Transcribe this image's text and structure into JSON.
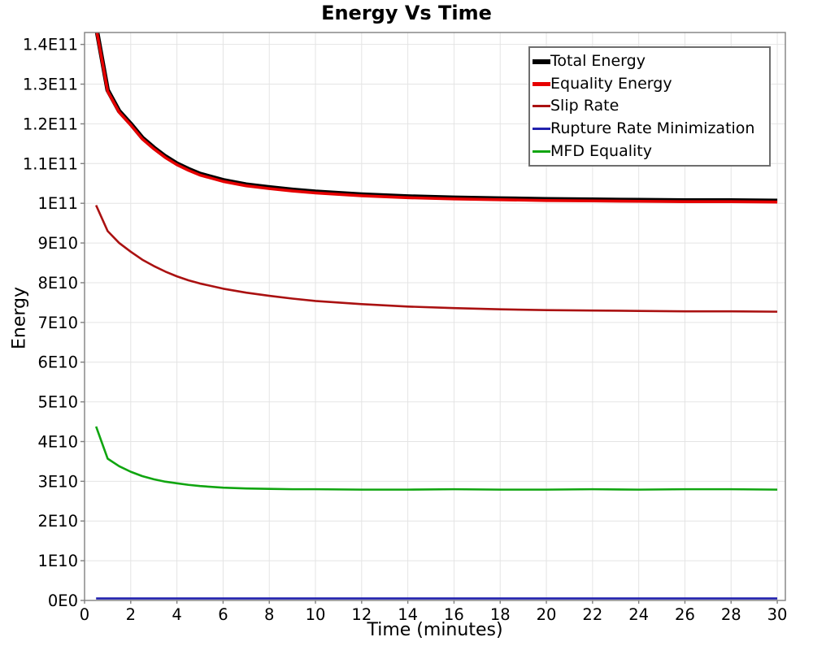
{
  "chart_data": {
    "type": "line",
    "title": "Energy Vs Time",
    "xlabel": "Time (minutes)",
    "ylabel": "Energy",
    "grid": true,
    "legend_position": "top-right",
    "xlim": [
      0,
      30.35
    ],
    "ylim": [
      0,
      143000000000.0
    ],
    "x_ticks": {
      "values": [
        0,
        2,
        4,
        6,
        8,
        10,
        12,
        14,
        16,
        18,
        20,
        22,
        24,
        26,
        28,
        30
      ],
      "labels": [
        "0",
        "2",
        "4",
        "6",
        "8",
        "10",
        "12",
        "14",
        "16",
        "18",
        "20",
        "22",
        "24",
        "26",
        "28",
        "30"
      ]
    },
    "y_ticks": {
      "values": [
        0,
        10000000000.0,
        20000000000.0,
        30000000000.0,
        40000000000.0,
        50000000000.0,
        60000000000.0,
        70000000000.0,
        80000000000.0,
        90000000000.0,
        100000000000.0,
        110000000000.0,
        120000000000.0,
        130000000000.0,
        140000000000.0
      ],
      "labels": [
        "0E0",
        "1E10",
        "2E10",
        "3E10",
        "4E10",
        "5E10",
        "6E10",
        "7E10",
        "8E10",
        "9E10",
        "1E11",
        "1.1E11",
        "1.2E11",
        "1.3E11",
        "1.4E11"
      ]
    },
    "x": [
      0.5,
      1,
      1.5,
      2,
      2.5,
      3,
      3.5,
      4,
      4.5,
      5,
      6,
      7,
      8,
      9,
      10,
      12,
      14,
      16,
      18,
      20,
      22,
      24,
      26,
      28,
      30
    ],
    "draw_order": [
      3,
      4,
      2,
      0,
      1
    ],
    "series": [
      {
        "name": "Total Energy",
        "color": "#000000",
        "width": 5.5,
        "legend_thickness": 6,
        "values": [
          144500000000.0,
          128500000000.0,
          123200000000.0,
          120000000000.0,
          116500000000.0,
          114000000000.0,
          111800000000.0,
          110000000000.0,
          108600000000.0,
          107400000000.0,
          105800000000.0,
          104700000000.0,
          104000000000.0,
          103400000000.0,
          102900000000.0,
          102200000000.0,
          101700000000.0,
          101400000000.0,
          101200000000.0,
          101000000000.0,
          100900000000.0,
          100800000000.0,
          100700000000.0,
          100700000000.0,
          100600000000.0
        ]
      },
      {
        "name": "Equality Energy",
        "color": "#e60000",
        "width": 3.6,
        "legend_thickness": 5,
        "values": [
          144200000000.0,
          128200000000.0,
          122900000000.0,
          119700000000.0,
          116200000000.0,
          113700000000.0,
          111500000000.0,
          109700000000.0,
          108300000000.0,
          107100000000.0,
          105500000000.0,
          104400000000.0,
          103700000000.0,
          103100000000.0,
          102600000000.0,
          101900000000.0,
          101400000000.0,
          101100000000.0,
          100900000000.0,
          100700000000.0,
          100600000000.0,
          100500000000.0,
          100400000000.0,
          100400000000.0,
          100300000000.0
        ]
      },
      {
        "name": "Slip Rate",
        "color": "#aa1111",
        "width": 2.6,
        "legend_thickness": 3,
        "values": [
          99500000000.0,
          93000000000.0,
          90000000000.0,
          87800000000.0,
          85800000000.0,
          84200000000.0,
          82800000000.0,
          81600000000.0,
          80600000000.0,
          79800000000.0,
          78500000000.0,
          77500000000.0,
          76700000000.0,
          76000000000.0,
          75400000000.0,
          74600000000.0,
          74000000000.0,
          73600000000.0,
          73300000000.0,
          73100000000.0,
          73000000000.0,
          72900000000.0,
          72800000000.0,
          72800000000.0,
          72700000000.0
        ]
      },
      {
        "name": "Rupture Rate Minimization",
        "color": "#2121ad",
        "width": 2.6,
        "legend_thickness": 3,
        "values": [
          500000000.0,
          500000000.0,
          500000000.0,
          500000000.0,
          500000000.0,
          500000000.0,
          500000000.0,
          500000000.0,
          500000000.0,
          500000000.0,
          500000000.0,
          500000000.0,
          500000000.0,
          500000000.0,
          500000000.0,
          500000000.0,
          500000000.0,
          500000000.0,
          500000000.0,
          500000000.0,
          500000000.0,
          500000000.0,
          500000000.0,
          500000000.0,
          500000000.0
        ]
      },
      {
        "name": "MFD Equality",
        "color": "#10a510",
        "width": 2.6,
        "legend_thickness": 3,
        "values": [
          43800000000.0,
          35700000000.0,
          33800000000.0,
          32400000000.0,
          31300000000.0,
          30500000000.0,
          29900000000.0,
          29500000000.0,
          29100000000.0,
          28800000000.0,
          28400000000.0,
          28200000000.0,
          28100000000.0,
          28000000000.0,
          28000000000.0,
          27900000000.0,
          27900000000.0,
          28000000000.0,
          27900000000.0,
          27900000000.0,
          28000000000.0,
          27900000000.0,
          28000000000.0,
          28000000000.0,
          27900000000.0
        ]
      }
    ],
    "style": {
      "grid_color": "#e4e4e4",
      "border_color": "#808080",
      "background": "#ffffff",
      "legend_border_color": "#6e6e6e"
    }
  }
}
